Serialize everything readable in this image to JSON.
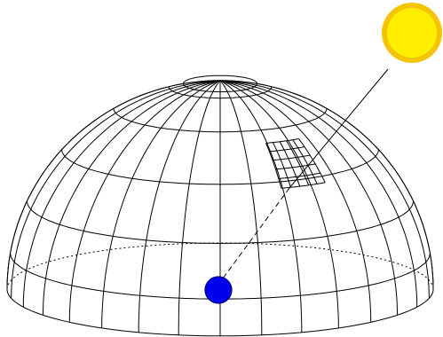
{
  "figure": {
    "type": "sky-dome-diagram",
    "colors": {
      "background": "#ffffff",
      "line": "#000000",
      "sun_fill": "#ffee00",
      "sun_outline": "#f5c400",
      "observer_fill": "#0000ee",
      "observer_outline": "#000080"
    },
    "elements": {
      "dome": "hemisphere-wireframe",
      "sun": "sun-icon",
      "observer": "observer-dot",
      "ray": "sun-ray",
      "patch": "sky-patch-grid",
      "horizon": "horizon-ellipse"
    }
  }
}
